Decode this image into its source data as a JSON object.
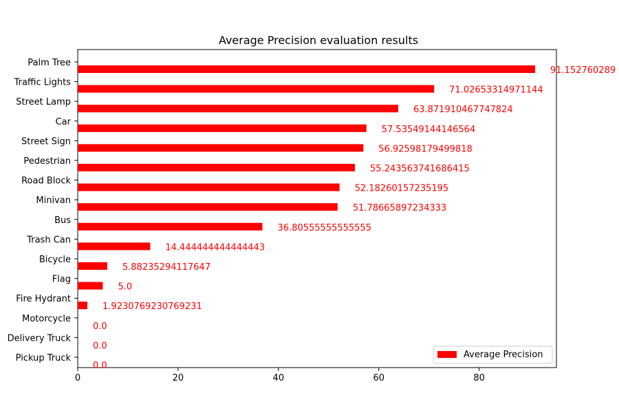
{
  "chart_data": {
    "type": "bar",
    "orientation": "horizontal",
    "title": "Average Precision evaluation results",
    "xlabel": "",
    "ylabel": "",
    "xlim": [
      0,
      95.4
    ],
    "xticks": [
      "0",
      "20",
      "40",
      "60",
      "80"
    ],
    "grid": false,
    "legend_position": "bottom-right",
    "bar_color": "#ff0000",
    "label_color": "#ff0000",
    "categories": [
      "Palm Tree",
      "Traffic Lights",
      "Street Lamp",
      "Car",
      "Street Sign",
      "Pedestrian",
      "Road Block",
      "Minivan",
      "Bus",
      "Trash Can",
      "Bicycle",
      "Flag",
      "Fire Hydrant",
      "Motorcycle",
      "Delivery Truck",
      "Pickup Truck"
    ],
    "values": [
      91.152760289,
      71.02653314971144,
      63.871910467747824,
      57.53549144146564,
      56.92598179499818,
      55.243563741686415,
      52.18260157235195,
      51.78665897234333,
      36.80555555555555,
      14.444444444444443,
      5.88235294117647,
      5.0,
      1.9230769230769231,
      0.0,
      0.0,
      0.0
    ],
    "value_labels": [
      "91.152760289",
      "71.02653314971144",
      "63.871910467747824",
      "57.53549144146564",
      "56.92598179499818",
      "55.243563741686415",
      "52.18260157235195",
      "51.78665897234333",
      "36.80555555555555",
      "14.444444444444443",
      "5.88235294117647",
      "5.0",
      "1.9230769230769231",
      "0.0",
      "0.0",
      "0.0"
    ],
    "series": [
      {
        "name": "Average Precision",
        "color": "#ff0000"
      }
    ]
  }
}
